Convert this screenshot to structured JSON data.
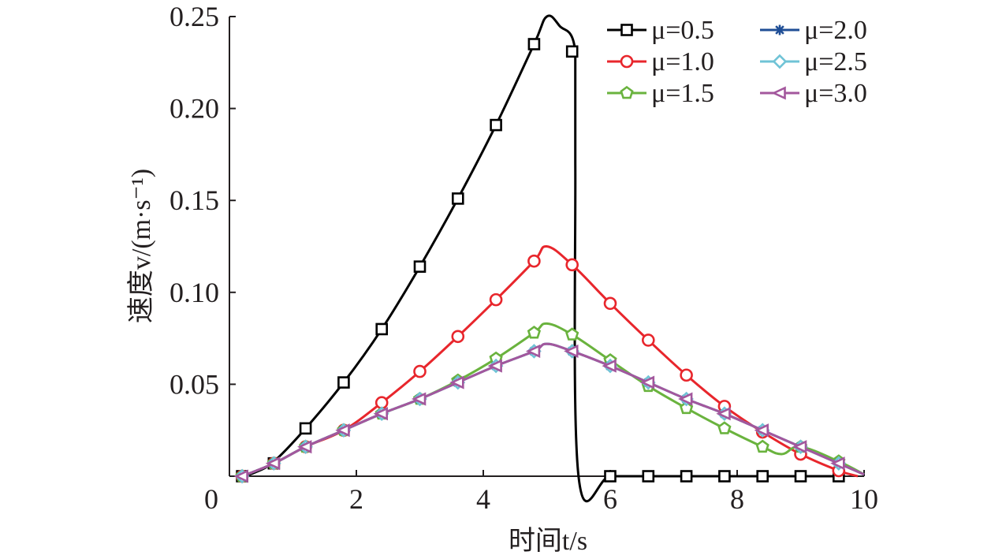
{
  "chart_data": {
    "type": "line",
    "xlabel": "时间t/s",
    "ylabel": "速度v/(m·s⁻¹)",
    "xlim": [
      0,
      10
    ],
    "ylim": [
      0,
      0.25
    ],
    "xticks": [
      "0",
      "2",
      "4",
      "6",
      "8",
      "10"
    ],
    "yticks": [
      "0.05",
      "0.10",
      "0.15",
      "0.20",
      "0.25"
    ],
    "grid": false,
    "legend_position": "top-right",
    "series": [
      {
        "name": "μ=0.5",
        "color": "#000000",
        "marker": "square",
        "x": [
          0.2,
          0.4,
          0.7,
          1.2,
          1.8,
          2.4,
          3.0,
          3.6,
          4.2,
          4.8,
          5.0,
          5.2,
          5.45,
          5.45,
          5.5,
          6.0,
          6.6,
          7.2,
          7.8,
          8.4,
          9.0,
          9.6
        ],
        "y": [
          0.0,
          0.002,
          0.008,
          0.026,
          0.051,
          0.08,
          0.114,
          0.151,
          0.191,
          0.235,
          0.25,
          0.245,
          0.231,
          0.17,
          0.0,
          0.0,
          0.0,
          0.0,
          0.0,
          0.0,
          0.0,
          0.0
        ],
        "marker_x": [
          0.2,
          0.7,
          1.2,
          1.8,
          2.4,
          3.0,
          3.6,
          4.2,
          4.8,
          5.4,
          6.0,
          6.6,
          7.2,
          7.8,
          8.4,
          9.0,
          9.6
        ],
        "marker_y": [
          0.0,
          0.007,
          0.026,
          0.051,
          0.08,
          0.114,
          0.151,
          0.191,
          0.235,
          0.231,
          0.0,
          0.0,
          0.0,
          0.0,
          0.0,
          0.0,
          0.0
        ]
      },
      {
        "name": "μ=1.0",
        "color": "#e8262c",
        "marker": "circle",
        "x": [
          0.2,
          0.7,
          1.2,
          1.8,
          2.4,
          3.0,
          3.6,
          4.2,
          4.8,
          5.0,
          5.4,
          6.0,
          6.6,
          7.2,
          7.8,
          8.4,
          9.0,
          9.6,
          9.9
        ],
        "y": [
          0.0,
          0.007,
          0.016,
          0.025,
          0.04,
          0.057,
          0.076,
          0.096,
          0.117,
          0.125,
          0.115,
          0.094,
          0.074,
          0.055,
          0.038,
          0.024,
          0.012,
          0.003,
          0.0
        ],
        "marker_x": [
          0.2,
          0.7,
          1.2,
          1.8,
          2.4,
          3.0,
          3.6,
          4.2,
          4.8,
          5.4,
          6.0,
          6.6,
          7.2,
          7.8,
          8.4,
          9.0,
          9.6
        ],
        "marker_y": [
          0.0,
          0.007,
          0.016,
          0.025,
          0.04,
          0.057,
          0.076,
          0.096,
          0.117,
          0.115,
          0.094,
          0.074,
          0.055,
          0.038,
          0.024,
          0.012,
          0.003
        ]
      },
      {
        "name": "μ=1.5",
        "color": "#6ab33e",
        "marker": "pentagon",
        "x": [
          0.2,
          0.7,
          1.2,
          1.8,
          2.4,
          3.0,
          3.6,
          4.2,
          4.8,
          5.0,
          5.4,
          6.0,
          6.6,
          7.2,
          7.8,
          8.4,
          8.7,
          9.0,
          9.6,
          10.0
        ],
        "y": [
          0.0,
          0.007,
          0.016,
          0.025,
          0.034,
          0.042,
          0.052,
          0.064,
          0.078,
          0.083,
          0.077,
          0.063,
          0.049,
          0.037,
          0.026,
          0.016,
          0.012,
          0.016,
          0.008,
          0.001
        ],
        "marker_x": [
          0.2,
          0.7,
          1.2,
          1.8,
          2.4,
          3.0,
          3.6,
          4.2,
          4.8,
          5.4,
          6.0,
          6.6,
          7.2,
          7.8,
          8.4,
          9.0,
          9.6
        ],
        "marker_y": [
          0.0,
          0.007,
          0.016,
          0.025,
          0.034,
          0.042,
          0.052,
          0.064,
          0.078,
          0.077,
          0.063,
          0.049,
          0.037,
          0.026,
          0.016,
          0.016,
          0.008
        ]
      },
      {
        "name": "μ=2.0",
        "color": "#1f4e96",
        "marker": "star",
        "x": [
          0.2,
          0.7,
          1.2,
          1.8,
          2.4,
          3.0,
          3.6,
          4.2,
          4.8,
          5.0,
          5.4,
          6.0,
          6.6,
          7.2,
          7.8,
          8.4,
          9.0,
          9.6,
          10.0
        ],
        "y": [
          0.0,
          0.007,
          0.016,
          0.025,
          0.034,
          0.042,
          0.051,
          0.06,
          0.068,
          0.072,
          0.068,
          0.06,
          0.051,
          0.042,
          0.034,
          0.025,
          0.016,
          0.007,
          0.001
        ],
        "marker_x": [
          0.2,
          0.7,
          1.2,
          1.8,
          2.4,
          3.0,
          3.6,
          4.2,
          4.8,
          5.4,
          6.0,
          6.6,
          7.2,
          7.8,
          8.4,
          9.0,
          9.6
        ],
        "marker_y": [
          0.0,
          0.007,
          0.016,
          0.025,
          0.034,
          0.042,
          0.051,
          0.06,
          0.068,
          0.068,
          0.06,
          0.051,
          0.042,
          0.034,
          0.025,
          0.016,
          0.007
        ]
      },
      {
        "name": "μ=2.5",
        "color": "#6fc3d6",
        "marker": "diamond",
        "x": [
          0.2,
          0.7,
          1.2,
          1.8,
          2.4,
          3.0,
          3.6,
          4.2,
          4.8,
          5.0,
          5.4,
          6.0,
          6.6,
          7.2,
          7.8,
          8.4,
          9.0,
          9.6,
          10.0
        ],
        "y": [
          0.0,
          0.007,
          0.016,
          0.025,
          0.034,
          0.042,
          0.051,
          0.06,
          0.068,
          0.072,
          0.068,
          0.06,
          0.051,
          0.042,
          0.034,
          0.025,
          0.016,
          0.007,
          0.001
        ],
        "marker_x": [
          0.2,
          0.7,
          1.2,
          1.8,
          2.4,
          3.0,
          3.6,
          4.2,
          4.8,
          5.4,
          6.0,
          6.6,
          7.2,
          7.8,
          8.4,
          9.0,
          9.6
        ],
        "marker_y": [
          0.0,
          0.007,
          0.016,
          0.025,
          0.034,
          0.042,
          0.051,
          0.06,
          0.068,
          0.068,
          0.06,
          0.051,
          0.042,
          0.034,
          0.025,
          0.016,
          0.007
        ]
      },
      {
        "name": "μ=3.0",
        "color": "#a3579d",
        "marker": "triangle-left",
        "x": [
          0.2,
          0.7,
          1.2,
          1.8,
          2.4,
          3.0,
          3.6,
          4.2,
          4.8,
          5.0,
          5.4,
          6.0,
          6.6,
          7.2,
          7.8,
          8.4,
          9.0,
          9.6,
          10.0
        ],
        "y": [
          0.0,
          0.007,
          0.016,
          0.025,
          0.034,
          0.042,
          0.051,
          0.06,
          0.068,
          0.072,
          0.068,
          0.06,
          0.051,
          0.042,
          0.034,
          0.025,
          0.016,
          0.007,
          0.001
        ],
        "marker_x": [
          0.2,
          0.7,
          1.2,
          1.8,
          2.4,
          3.0,
          3.6,
          4.2,
          4.8,
          5.4,
          6.0,
          6.6,
          7.2,
          7.8,
          8.4,
          9.0,
          9.6
        ],
        "marker_y": [
          0.0,
          0.007,
          0.016,
          0.025,
          0.034,
          0.042,
          0.051,
          0.06,
          0.068,
          0.068,
          0.06,
          0.051,
          0.042,
          0.034,
          0.025,
          0.016,
          0.007
        ]
      }
    ]
  }
}
